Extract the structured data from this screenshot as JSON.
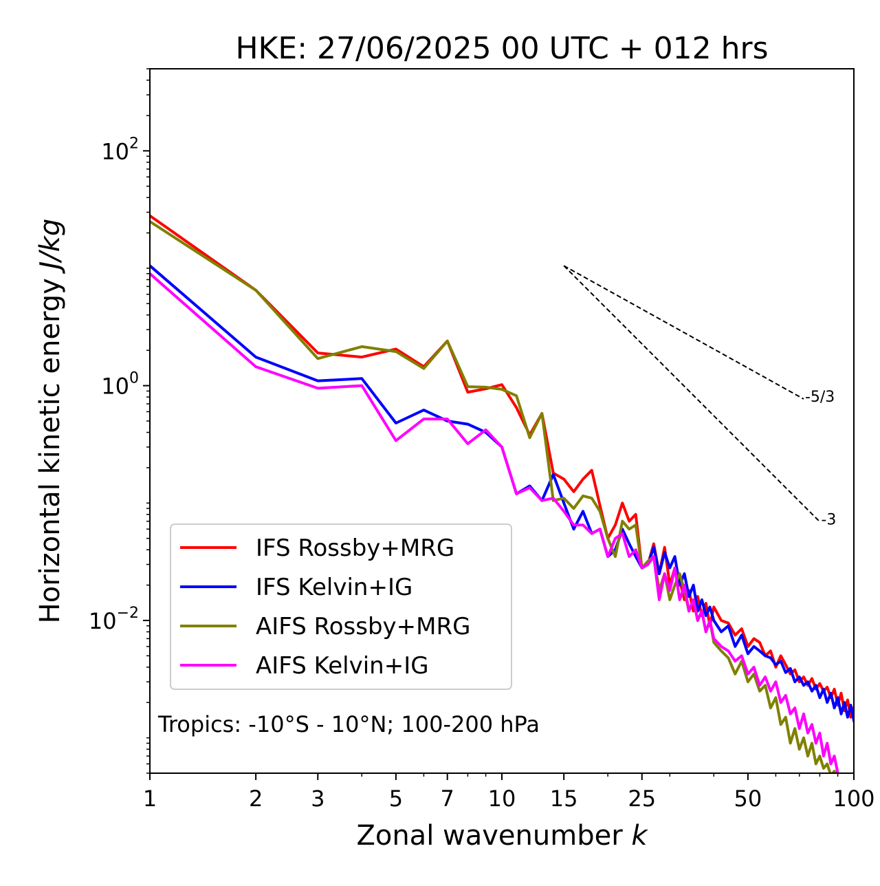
{
  "chart_data": {
    "type": "line",
    "title": "HKE: 27/06/2025 00 UTC + 012 hrs",
    "xlabel": "Zonal wavenumber k",
    "xlabel_main": "Zonal wavenumber ",
    "xlabel_var": "k",
    "ylabel": "Horizontal kinetic energy J/kg",
    "ylabel_main": "Horizontal kinetic energy ",
    "ylabel_unit": "J/kg",
    "xscale": "log",
    "yscale": "log",
    "xlim": [
      1,
      100
    ],
    "ylim": [
      0.0005,
      500
    ],
    "xticks": [
      1,
      2,
      3,
      5,
      7,
      10,
      15,
      25,
      50,
      100
    ],
    "xtick_labels": [
      "1",
      "2",
      "3",
      "5",
      "7",
      "10",
      "15",
      "25",
      "50",
      "100"
    ],
    "yticks": [
      0.01,
      1,
      100
    ],
    "ytick_labels": [
      {
        "base": "10",
        "exp": "−2"
      },
      {
        "base": "10",
        "exp": "0"
      },
      {
        "base": "10",
        "exp": "2"
      }
    ],
    "grid": false,
    "legend_position": "lower-left",
    "annotation": "Tropics: -10°S - 10°N; 100-200 hPa",
    "reference_slopes": [
      {
        "label": "-5/3",
        "slope": -1.6667,
        "x": [
          15,
          72
        ],
        "y": [
          10.5,
          0.77
        ]
      },
      {
        "label": "-3",
        "slope": -3,
        "x": [
          15,
          80
        ],
        "y": [
          10.5,
          0.0693
        ]
      }
    ],
    "series": [
      {
        "name": "IFS Rossby+MRG",
        "color": "#ff0000",
        "x": [
          1,
          2,
          3,
          4,
          5,
          6,
          7,
          8,
          9,
          10,
          11,
          12,
          13,
          14,
          15,
          16,
          17,
          18,
          19,
          20,
          21,
          22,
          23,
          24,
          25,
          26,
          27,
          28,
          29,
          30,
          31,
          32,
          33,
          34,
          35,
          36,
          37,
          38,
          39,
          40,
          42,
          44,
          46,
          48,
          50,
          52,
          54,
          56,
          58,
          60,
          62,
          64,
          66,
          68,
          70,
          72,
          74,
          76,
          78,
          80,
          82,
          84,
          86,
          88,
          90,
          92,
          94,
          96,
          98,
          100
        ],
        "y": [
          28,
          6.5,
          1.9,
          1.75,
          2.05,
          1.45,
          2.4,
          0.88,
          0.94,
          1.02,
          0.65,
          0.38,
          0.58,
          0.18,
          0.16,
          0.125,
          0.16,
          0.19,
          0.095,
          0.05,
          0.065,
          0.1,
          0.07,
          0.08,
          0.028,
          0.03,
          0.045,
          0.025,
          0.042,
          0.02,
          0.028,
          0.022,
          0.015,
          0.018,
          0.012,
          0.016,
          0.011,
          0.014,
          0.009,
          0.013,
          0.01,
          0.0095,
          0.0075,
          0.0085,
          0.006,
          0.007,
          0.0065,
          0.005,
          0.0055,
          0.004,
          0.005,
          0.0042,
          0.0035,
          0.0038,
          0.003,
          0.0033,
          0.0028,
          0.0032,
          0.0026,
          0.0029,
          0.0025,
          0.0027,
          0.0022,
          0.0026,
          0.0019,
          0.0024,
          0.0017,
          0.0021,
          0.0015,
          0.0018
        ]
      },
      {
        "name": "IFS Kelvin+IG",
        "color": "#0000ff",
        "x": [
          1,
          2,
          3,
          4,
          5,
          6,
          7,
          8,
          9,
          10,
          11,
          12,
          13,
          14,
          15,
          16,
          17,
          18,
          19,
          20,
          21,
          22,
          23,
          24,
          25,
          26,
          27,
          28,
          29,
          30,
          31,
          32,
          33,
          34,
          35,
          36,
          37,
          38,
          39,
          40,
          42,
          44,
          46,
          48,
          50,
          52,
          54,
          56,
          58,
          60,
          62,
          64,
          66,
          68,
          70,
          72,
          74,
          76,
          78,
          80,
          82,
          84,
          86,
          88,
          90,
          92,
          94,
          96,
          98,
          100
        ],
        "y": [
          10.5,
          1.75,
          1.1,
          1.15,
          0.48,
          0.62,
          0.5,
          0.47,
          0.4,
          0.3,
          0.12,
          0.14,
          0.105,
          0.175,
          0.1,
          0.06,
          0.085,
          0.055,
          0.06,
          0.035,
          0.04,
          0.06,
          0.045,
          0.035,
          0.028,
          0.03,
          0.042,
          0.025,
          0.038,
          0.028,
          0.035,
          0.02,
          0.025,
          0.016,
          0.02,
          0.012,
          0.015,
          0.011,
          0.013,
          0.01,
          0.008,
          0.009,
          0.006,
          0.0075,
          0.0052,
          0.006,
          0.0055,
          0.005,
          0.0048,
          0.0042,
          0.0045,
          0.0036,
          0.0039,
          0.003,
          0.0033,
          0.0028,
          0.003,
          0.0025,
          0.0028,
          0.0022,
          0.0026,
          0.002,
          0.0024,
          0.0018,
          0.0022,
          0.0016,
          0.002,
          0.0015,
          0.0019,
          0.0014
        ]
      },
      {
        "name": "AIFS Rossby+MRG",
        "color": "#808000",
        "x": [
          1,
          2,
          3,
          4,
          5,
          6,
          7,
          8,
          9,
          10,
          11,
          12,
          13,
          14,
          15,
          16,
          17,
          18,
          19,
          20,
          21,
          22,
          23,
          24,
          25,
          26,
          27,
          28,
          29,
          30,
          31,
          32,
          33,
          34,
          35,
          36,
          37,
          38,
          39,
          40,
          42,
          44,
          46,
          48,
          50,
          52,
          54,
          56,
          58,
          60,
          62,
          64,
          66,
          68,
          70,
          72,
          74,
          76,
          78,
          80,
          82,
          84,
          86,
          88,
          90
        ],
        "y": [
          25,
          6.5,
          1.7,
          2.15,
          1.95,
          1.4,
          2.4,
          0.98,
          0.97,
          0.93,
          0.82,
          0.36,
          0.58,
          0.105,
          0.11,
          0.09,
          0.115,
          0.11,
          0.085,
          0.05,
          0.035,
          0.07,
          0.06,
          0.065,
          0.028,
          0.032,
          0.035,
          0.018,
          0.025,
          0.015,
          0.02,
          0.025,
          0.018,
          0.012,
          0.015,
          0.01,
          0.012,
          0.008,
          0.01,
          0.0065,
          0.0055,
          0.0048,
          0.0035,
          0.0045,
          0.003,
          0.0035,
          0.0025,
          0.0028,
          0.0018,
          0.0022,
          0.0013,
          0.0015,
          0.0009,
          0.0012,
          0.0008,
          0.001,
          0.0007,
          0.0009,
          0.0006,
          0.0007,
          0.00055,
          0.0006,
          0.00048,
          0.00052,
          0.00045
        ]
      },
      {
        "name": "AIFS Kelvin+IG",
        "color": "#ff00ff",
        "x": [
          1,
          2,
          3,
          4,
          5,
          6,
          7,
          8,
          9,
          10,
          11,
          12,
          13,
          14,
          15,
          16,
          17,
          18,
          19,
          20,
          21,
          22,
          23,
          24,
          25,
          26,
          27,
          28,
          29,
          30,
          31,
          32,
          33,
          34,
          35,
          36,
          37,
          38,
          39,
          40,
          42,
          44,
          46,
          48,
          50,
          52,
          54,
          56,
          58,
          60,
          62,
          64,
          66,
          68,
          70,
          72,
          74,
          76,
          78,
          80,
          82,
          84,
          86,
          88,
          90
        ],
        "y": [
          9,
          1.45,
          0.95,
          1.0,
          0.34,
          0.52,
          0.52,
          0.32,
          0.42,
          0.3,
          0.12,
          0.135,
          0.105,
          0.11,
          0.085,
          0.065,
          0.065,
          0.055,
          0.06,
          0.035,
          0.05,
          0.055,
          0.035,
          0.04,
          0.028,
          0.03,
          0.035,
          0.015,
          0.025,
          0.018,
          0.028,
          0.015,
          0.02,
          0.012,
          0.015,
          0.01,
          0.012,
          0.008,
          0.01,
          0.007,
          0.006,
          0.0055,
          0.0045,
          0.005,
          0.0035,
          0.004,
          0.0028,
          0.0033,
          0.0025,
          0.003,
          0.002,
          0.0023,
          0.0016,
          0.0018,
          0.0012,
          0.0016,
          0.0011,
          0.0013,
          0.0009,
          0.0011,
          0.0007,
          0.0009,
          0.0006,
          0.0007,
          0.0005
        ]
      }
    ]
  }
}
